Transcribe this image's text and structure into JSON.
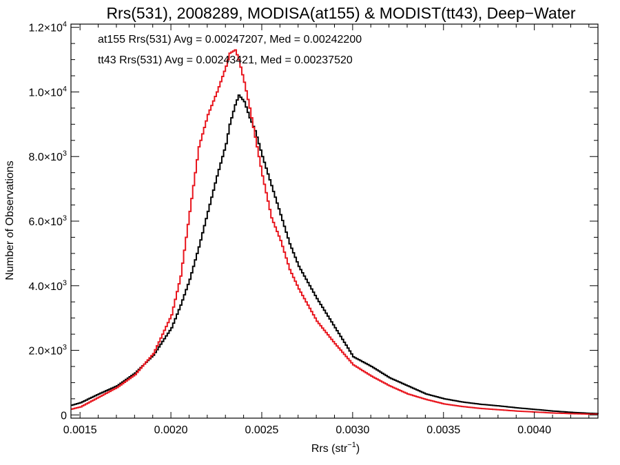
{
  "chart_data": {
    "type": "line",
    "title": "Rrs(531), 2008289, MODISA(at155) & MODIST(tt43), Deep−Water",
    "xlabel": "Rrs (str",
    "xlabel_sup": "−1",
    "xlabel_end": ")",
    "ylabel": "Number of Observations",
    "xlim": [
      0.00145,
      0.00435
    ],
    "ylim": [
      -100,
      12100
    ],
    "xticks": [
      {
        "v": 0.0015,
        "label": "0.0015"
      },
      {
        "v": 0.002,
        "label": "0.0020"
      },
      {
        "v": 0.0025,
        "label": "0.0025"
      },
      {
        "v": 0.003,
        "label": "0.0030"
      },
      {
        "v": 0.0035,
        "label": "0.0035"
      },
      {
        "v": 0.004,
        "label": "0.0040"
      }
    ],
    "yticks": [
      {
        "v": 0,
        "mant": "0",
        "exp": ""
      },
      {
        "v": 2000,
        "mant": "2.0×10",
        "exp": "3"
      },
      {
        "v": 4000,
        "mant": "4.0×10",
        "exp": "3"
      },
      {
        "v": 6000,
        "mant": "6.0×10",
        "exp": "3"
      },
      {
        "v": 8000,
        "mant": "8.0×10",
        "exp": "3"
      },
      {
        "v": 10000,
        "mant": "1.0×10",
        "exp": "4"
      },
      {
        "v": 12000,
        "mant": "1.2×10",
        "exp": "4"
      }
    ],
    "annotations": [
      {
        "text": "at155 Rrs(531) Avg = 0.00247207, Med = 0.00242200",
        "color": "#000000"
      },
      {
        "text": "tt43 Rrs(531) Avg = 0.00243421, Med = 0.00237520",
        "color": "#e8141c"
      }
    ],
    "series": [
      {
        "color": "#000000",
        "x": [
          0.00145,
          0.0015,
          0.0016,
          0.0017,
          0.0018,
          0.0019,
          0.002,
          0.00205,
          0.0021,
          0.00215,
          0.0022,
          0.00225,
          0.0023,
          0.00232,
          0.00235,
          0.00237,
          0.0024,
          0.00243,
          0.00246,
          0.0025,
          0.00255,
          0.0026,
          0.00265,
          0.0027,
          0.0028,
          0.0029,
          0.003,
          0.0031,
          0.0032,
          0.0033,
          0.0034,
          0.0035,
          0.0036,
          0.0037,
          0.0038,
          0.0039,
          0.004,
          0.0041,
          0.0042,
          0.0043,
          0.00435
        ],
        "y": [
          300,
          380,
          650,
          900,
          1300,
          1850,
          2700,
          3400,
          4200,
          5200,
          6300,
          7400,
          8400,
          9000,
          9600,
          9900,
          9700,
          9200,
          8800,
          8000,
          7100,
          6200,
          5300,
          4600,
          3600,
          2700,
          1800,
          1500,
          1150,
          900,
          650,
          500,
          400,
          330,
          280,
          220,
          170,
          120,
          80,
          50,
          40
        ]
      },
      {
        "color": "#e8141c",
        "x": [
          0.00145,
          0.0015,
          0.0016,
          0.0017,
          0.0018,
          0.0019,
          0.002,
          0.00205,
          0.0021,
          0.00215,
          0.0022,
          0.00225,
          0.0023,
          0.00232,
          0.00235,
          0.00237,
          0.0024,
          0.00243,
          0.00246,
          0.0025,
          0.00255,
          0.0026,
          0.00265,
          0.0027,
          0.0028,
          0.0029,
          0.003,
          0.0031,
          0.0032,
          0.0033,
          0.0034,
          0.0035,
          0.0036,
          0.0037,
          0.0038,
          0.0039,
          0.004,
          0.0041,
          0.0042,
          0.0043,
          0.00435
        ],
        "y": [
          180,
          250,
          550,
          850,
          1250,
          1900,
          3100,
          4300,
          6300,
          8300,
          9300,
          10000,
          10800,
          11200,
          11300,
          11000,
          10300,
          9500,
          8600,
          7400,
          6100,
          5400,
          4500,
          3900,
          2900,
          2200,
          1550,
          1200,
          900,
          650,
          480,
          340,
          260,
          200,
          160,
          120,
          90,
          60,
          40,
          25,
          20
        ]
      }
    ]
  }
}
